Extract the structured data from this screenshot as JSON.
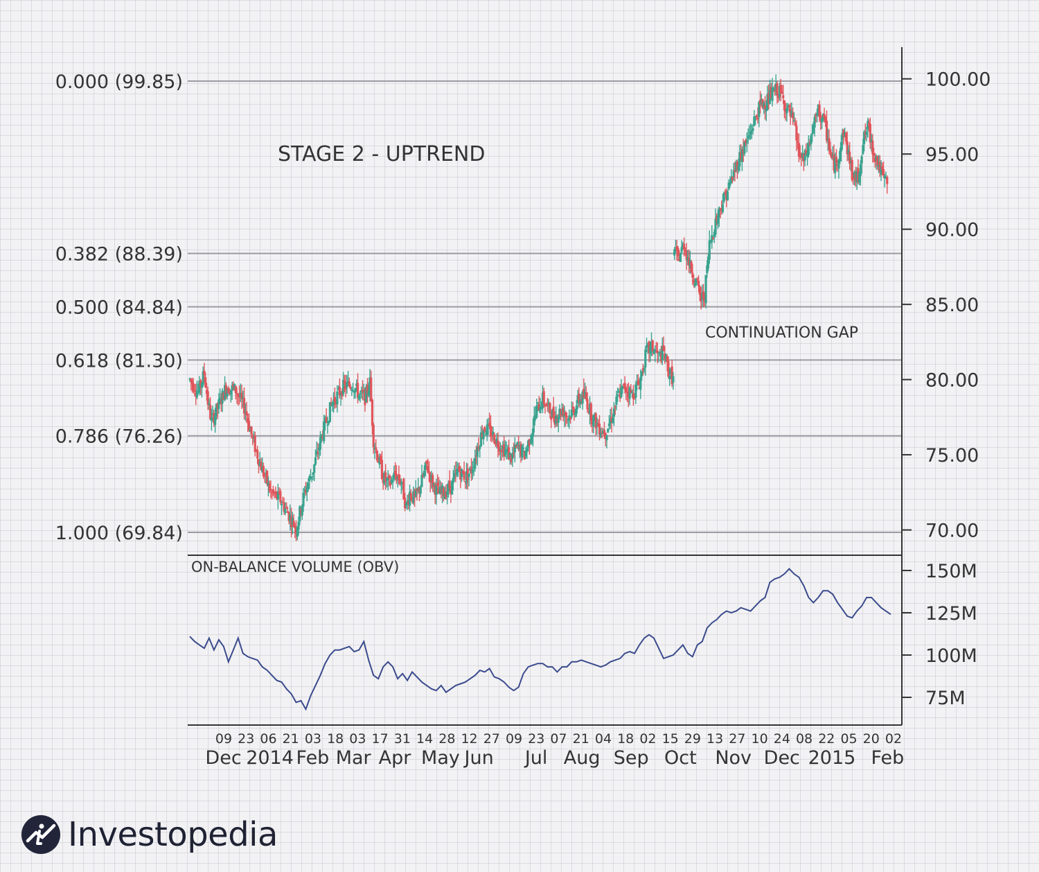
{
  "chart_data": {
    "type": "candlestick",
    "title": "STAGE 2 - UPTREND",
    "price_panel": {
      "ylim": [
        67.5,
        102.5
      ],
      "yticks": [
        "100.00",
        "95.00",
        "90.00",
        "85.00",
        "80.00",
        "75.00",
        "70.00"
      ],
      "ytick_values": [
        100,
        95,
        90,
        85,
        80,
        75,
        70
      ],
      "fibonacci_levels": [
        {
          "label": "0.000 (99.85)",
          "value": 99.85
        },
        {
          "label": "0.382 (88.39)",
          "value": 88.39
        },
        {
          "label": "0.500 (84.84)",
          "value": 84.84
        },
        {
          "label": "0.618 (81.30)",
          "value": 81.3
        },
        {
          "label": "0.786 (76.26)",
          "value": 76.26
        },
        {
          "label": "1.000 (69.84)",
          "value": 69.84
        }
      ],
      "annotation": "CONTINUATION GAP",
      "price_path": [
        [
          0,
          80.0
        ],
        [
          7,
          79.2
        ],
        [
          12,
          80.4
        ],
        [
          15,
          78.5
        ],
        [
          18,
          77.2
        ],
        [
          25,
          78.5
        ],
        [
          30,
          79.5
        ],
        [
          38,
          79.3
        ],
        [
          46,
          78.0
        ],
        [
          52,
          76.0
        ],
        [
          60,
          74.0
        ],
        [
          67,
          72.5
        ],
        [
          75,
          72.0
        ],
        [
          82,
          71.0
        ],
        [
          88,
          70.1
        ],
        [
          95,
          72.5
        ],
        [
          102,
          74.0
        ],
        [
          110,
          76.5
        ],
        [
          118,
          78.5
        ],
        [
          127,
          79.5
        ],
        [
          135,
          79.7
        ],
        [
          140,
          79.0
        ],
        [
          145,
          78.8
        ],
        [
          149,
          79.8
        ],
        [
          152,
          76.0
        ],
        [
          155,
          75.0
        ],
        [
          160,
          73.5
        ],
        [
          165,
          73.0
        ],
        [
          170,
          73.7
        ],
        [
          175,
          73.2
        ],
        [
          179,
          71.5
        ],
        [
          182,
          72.5
        ],
        [
          186,
          72.0
        ],
        [
          191,
          73.0
        ],
        [
          196,
          74.3
        ],
        [
          201,
          73.1
        ],
        [
          206,
          72.4
        ],
        [
          212,
          72.6
        ],
        [
          217,
          73.0
        ],
        [
          222,
          74.0
        ],
        [
          228,
          73.5
        ],
        [
          233,
          74.0
        ],
        [
          238,
          75.5
        ],
        [
          243,
          76.8
        ],
        [
          249,
          76.5
        ],
        [
          255,
          75.8
        ],
        [
          261,
          75.3
        ],
        [
          266,
          74.8
        ],
        [
          271,
          75.5
        ],
        [
          277,
          75.0
        ],
        [
          282,
          76.3
        ],
        [
          287,
          78.0
        ],
        [
          292,
          78.7
        ],
        [
          297,
          78.0
        ],
        [
          302,
          77.5
        ],
        [
          308,
          78.0
        ],
        [
          313,
          77.5
        ],
        [
          318,
          78.0
        ],
        [
          322,
          78.7
        ],
        [
          327,
          78.9
        ],
        [
          333,
          77.5
        ],
        [
          339,
          76.8
        ],
        [
          344,
          76.5
        ],
        [
          349,
          77.5
        ],
        [
          355,
          79.0
        ],
        [
          360,
          79.5
        ],
        [
          366,
          79.0
        ],
        [
          372,
          79.8
        ],
        [
          378,
          81.9
        ],
        [
          383,
          82.1
        ],
        [
          388,
          81.5
        ],
        [
          392,
          81.8
        ],
        [
          396,
          80.6
        ],
        [
          400,
          80.0
        ],
        [
          401,
          88.5
        ],
        [
          404,
          88.0
        ],
        [
          409,
          89.0
        ],
        [
          414,
          87.5
        ],
        [
          419,
          86.5
        ],
        [
          423,
          85.3
        ],
        [
          426,
          85.7
        ],
        [
          430,
          89.0
        ],
        [
          435,
          90.5
        ],
        [
          440,
          91.7
        ],
        [
          447,
          93.0
        ],
        [
          452,
          94.2
        ],
        [
          457,
          95.2
        ],
        [
          462,
          96.0
        ],
        [
          467,
          97.2
        ],
        [
          472,
          98.2
        ],
        [
          477,
          98.5
        ],
        [
          482,
          99.0
        ],
        [
          486,
          99.3
        ],
        [
          490,
          98.8
        ],
        [
          494,
          98.0
        ],
        [
          498,
          97.4
        ],
        [
          501,
          96.5
        ],
        [
          504,
          95.0
        ],
        [
          508,
          94.5
        ],
        [
          512,
          95.5
        ],
        [
          516,
          96.8
        ],
        [
          520,
          97.8
        ],
        [
          524,
          97.3
        ],
        [
          528,
          96.0
        ],
        [
          531,
          94.6
        ],
        [
          535,
          94.2
        ],
        [
          538,
          95.5
        ],
        [
          541,
          96.5
        ],
        [
          545,
          95.0
        ],
        [
          549,
          93.3
        ],
        [
          553,
          93.5
        ],
        [
          557,
          95.8
        ],
        [
          561,
          96.8
        ],
        [
          565,
          95.4
        ],
        [
          569,
          94.5
        ],
        [
          573,
          93.5
        ],
        [
          577,
          93.0
        ]
      ]
    },
    "obv_panel": {
      "title": "ON-BALANCE VOLUME (OBV)",
      "ylim": [
        53,
        160
      ],
      "yticks": [
        "150M",
        "125M",
        "100M",
        "75M"
      ],
      "ytick_values": [
        150,
        125,
        100,
        75
      ],
      "unit": "M",
      "series": [
        [
          0,
          111
        ],
        [
          4,
          108
        ],
        [
          8,
          106
        ],
        [
          12,
          104
        ],
        [
          16,
          110
        ],
        [
          20,
          103
        ],
        [
          24,
          109
        ],
        [
          28,
          105
        ],
        [
          32,
          96
        ],
        [
          36,
          103
        ],
        [
          40,
          110
        ],
        [
          44,
          101
        ],
        [
          48,
          99
        ],
        [
          52,
          98
        ],
        [
          56,
          97
        ],
        [
          60,
          93
        ],
        [
          64,
          91
        ],
        [
          68,
          88
        ],
        [
          72,
          85
        ],
        [
          76,
          84
        ],
        [
          80,
          80
        ],
        [
          84,
          77
        ],
        [
          88,
          72
        ],
        [
          92,
          73
        ],
        [
          96,
          68
        ],
        [
          100,
          76
        ],
        [
          104,
          82
        ],
        [
          108,
          88
        ],
        [
          112,
          95
        ],
        [
          116,
          100
        ],
        [
          120,
          103
        ],
        [
          124,
          103
        ],
        [
          128,
          104
        ],
        [
          132,
          105
        ],
        [
          136,
          102
        ],
        [
          140,
          103
        ],
        [
          144,
          108
        ],
        [
          148,
          97
        ],
        [
          152,
          88
        ],
        [
          156,
          86
        ],
        [
          160,
          93
        ],
        [
          164,
          96
        ],
        [
          168,
          93
        ],
        [
          172,
          86
        ],
        [
          176,
          89
        ],
        [
          180,
          85
        ],
        [
          184,
          90
        ],
        [
          188,
          87
        ],
        [
          192,
          84
        ],
        [
          196,
          82
        ],
        [
          200,
          80
        ],
        [
          204,
          79
        ],
        [
          208,
          82
        ],
        [
          212,
          78
        ],
        [
          216,
          80
        ],
        [
          220,
          82
        ],
        [
          224,
          83
        ],
        [
          228,
          84
        ],
        [
          232,
          86
        ],
        [
          236,
          88
        ],
        [
          240,
          91
        ],
        [
          244,
          90
        ],
        [
          248,
          92
        ],
        [
          252,
          87
        ],
        [
          256,
          86
        ],
        [
          260,
          84
        ],
        [
          264,
          81
        ],
        [
          268,
          79
        ],
        [
          272,
          81
        ],
        [
          276,
          89
        ],
        [
          280,
          93
        ],
        [
          284,
          94
        ],
        [
          288,
          95
        ],
        [
          292,
          95
        ],
        [
          296,
          93
        ],
        [
          300,
          93
        ],
        [
          304,
          90
        ],
        [
          308,
          93
        ],
        [
          312,
          93
        ],
        [
          316,
          96
        ],
        [
          320,
          96
        ],
        [
          324,
          97
        ],
        [
          328,
          96
        ],
        [
          332,
          95
        ],
        [
          336,
          94
        ],
        [
          340,
          93
        ],
        [
          344,
          94
        ],
        [
          348,
          96
        ],
        [
          352,
          97
        ],
        [
          356,
          98
        ],
        [
          360,
          101
        ],
        [
          364,
          102
        ],
        [
          368,
          101
        ],
        [
          372,
          106
        ],
        [
          376,
          110
        ],
        [
          380,
          112
        ],
        [
          384,
          110
        ],
        [
          388,
          104
        ],
        [
          392,
          98
        ],
        [
          396,
          99
        ],
        [
          400,
          100
        ],
        [
          404,
          103
        ],
        [
          408,
          106
        ],
        [
          412,
          101
        ],
        [
          416,
          99
        ],
        [
          420,
          106
        ],
        [
          424,
          108
        ],
        [
          428,
          116
        ],
        [
          432,
          119
        ],
        [
          436,
          121
        ],
        [
          440,
          124
        ],
        [
          444,
          126
        ],
        [
          448,
          125
        ],
        [
          452,
          126
        ],
        [
          456,
          128
        ],
        [
          460,
          127
        ],
        [
          464,
          126
        ],
        [
          468,
          129
        ],
        [
          472,
          132
        ],
        [
          476,
          134
        ],
        [
          480,
          143
        ],
        [
          484,
          145
        ],
        [
          488,
          146
        ],
        [
          492,
          148
        ],
        [
          496,
          151
        ],
        [
          500,
          148
        ],
        [
          504,
          146
        ],
        [
          508,
          141
        ],
        [
          512,
          134
        ],
        [
          516,
          131
        ],
        [
          520,
          134
        ],
        [
          524,
          138
        ],
        [
          528,
          138
        ],
        [
          532,
          136
        ],
        [
          536,
          131
        ],
        [
          540,
          127
        ],
        [
          544,
          123
        ],
        [
          548,
          122
        ],
        [
          552,
          126
        ],
        [
          556,
          129
        ],
        [
          560,
          134
        ],
        [
          564,
          134
        ],
        [
          568,
          131
        ],
        [
          572,
          128
        ],
        [
          576,
          126
        ],
        [
          580,
          124
        ]
      ]
    },
    "x_axis": {
      "x_max": 580,
      "day_ticks": [
        {
          "label": "09",
          "x": 16
        },
        {
          "label": "23",
          "x": 31
        },
        {
          "label": "06",
          "x": 46
        },
        {
          "label": "21",
          "x": 61
        },
        {
          "label": "03",
          "x": 76
        },
        {
          "label": "18",
          "x": 91
        },
        {
          "label": "03",
          "x": 106
        },
        {
          "label": "17",
          "x": 121
        },
        {
          "label": "31",
          "x": 136
        },
        {
          "label": "14",
          "x": 151
        },
        {
          "label": "28",
          "x": 166
        },
        {
          "label": "12",
          "x": 181
        },
        {
          "label": "27",
          "x": 196
        },
        {
          "label": "09",
          "x": 211
        },
        {
          "label": "23",
          "x": 226
        },
        {
          "label": "07",
          "x": 241
        },
        {
          "label": "21",
          "x": 256
        },
        {
          "label": "04",
          "x": 271
        },
        {
          "label": "18",
          "x": 286
        },
        {
          "label": "02",
          "x": 301
        },
        {
          "label": "15",
          "x": 316
        },
        {
          "label": "29",
          "x": 331
        },
        {
          "label": "13",
          "x": 346
        },
        {
          "label": "27",
          "x": 361
        },
        {
          "label": "10",
          "x": 376
        },
        {
          "label": "24",
          "x": 391
        },
        {
          "label": "08",
          "x": 406
        },
        {
          "label": "22",
          "x": 421
        },
        {
          "label": "05",
          "x": 436
        },
        {
          "label": "20",
          "x": 451
        },
        {
          "label": "02",
          "x": 466
        }
      ],
      "month_ticks": [
        {
          "label": "Dec",
          "x": 0.05
        },
        {
          "label": "2014",
          "x": 0.115
        },
        {
          "label": "Feb",
          "x": 0.175
        },
        {
          "label": "Mar",
          "x": 0.232
        },
        {
          "label": "Apr",
          "x": 0.29
        },
        {
          "label": "May",
          "x": 0.354
        },
        {
          "label": "Jun",
          "x": 0.408
        },
        {
          "label": "Jul",
          "x": 0.488
        },
        {
          "label": "Aug",
          "x": 0.552
        },
        {
          "label": "Sep",
          "x": 0.621
        },
        {
          "label": "Oct",
          "x": 0.69
        },
        {
          "label": "Nov",
          "x": 0.764
        },
        {
          "label": "Dec",
          "x": 0.832
        },
        {
          "label": "2015",
          "x": 0.902
        },
        {
          "label": "Feb",
          "x": 0.98
        }
      ]
    },
    "colors": {
      "up": "#3aa38f",
      "down": "#e0555b",
      "obv_line": "#3a4a8c",
      "fib_line": "#9a9aa2",
      "axis": "#333333"
    }
  },
  "brand": {
    "name": "Investopedia",
    "logo_icon": "investopedia-logo-icon"
  }
}
